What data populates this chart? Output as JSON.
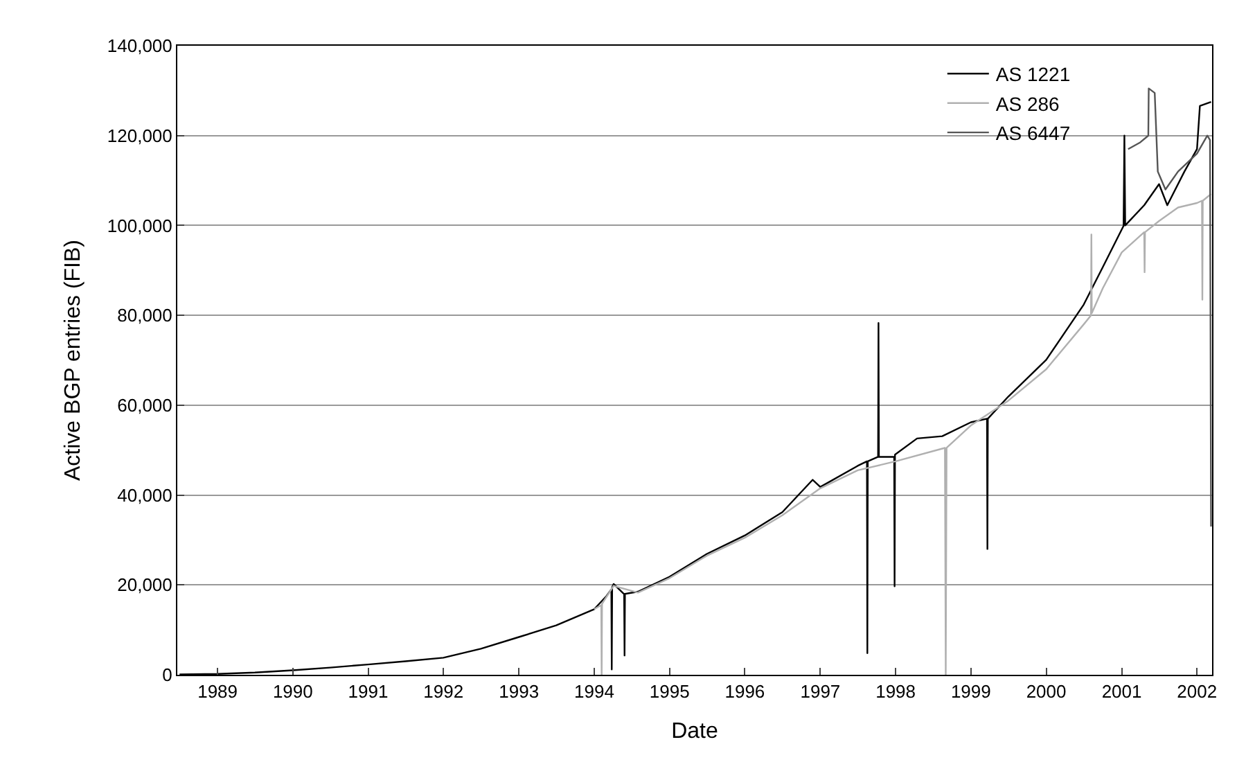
{
  "chart_data": {
    "type": "line",
    "xlabel": "Date",
    "ylabel": "Active BGP entries (FIB)",
    "xlim": [
      "1988-06-20",
      "2002-03-15"
    ],
    "ylim": [
      0,
      140000
    ],
    "xticks": [
      {
        "value": "1989-01-01",
        "label": "1989"
      },
      {
        "value": "1990-01-01",
        "label": "1990"
      },
      {
        "value": "1991-01-01",
        "label": "1991"
      },
      {
        "value": "1992-01-01",
        "label": "1992"
      },
      {
        "value": "1993-01-01",
        "label": "1993"
      },
      {
        "value": "1994-01-01",
        "label": "1994"
      },
      {
        "value": "1995-01-01",
        "label": "1995"
      },
      {
        "value": "1996-01-01",
        "label": "1996"
      },
      {
        "value": "1997-01-01",
        "label": "1997"
      },
      {
        "value": "1998-01-01",
        "label": "1998"
      },
      {
        "value": "1999-01-01",
        "label": "1999"
      },
      {
        "value": "2000-01-01",
        "label": "2000"
      },
      {
        "value": "2001-01-01",
        "label": "2001"
      },
      {
        "value": "2002-01-01",
        "label": "2002"
      }
    ],
    "yticks": [
      0,
      {
        "value": 20000,
        "label": "20,000"
      },
      {
        "value": 40000,
        "label": "40,000"
      },
      {
        "value": 60000,
        "label": "60,000"
      },
      {
        "value": 80000,
        "label": "80,000"
      },
      {
        "value": 100000,
        "label": "100,000"
      },
      {
        "value": 120000,
        "label": "120,000"
      },
      {
        "value": 140000,
        "label": "140,000"
      }
    ],
    "grid": "y",
    "legend": "top right",
    "marker": "none",
    "line_style": "solid",
    "series": [
      {
        "name": "AS 1221",
        "color": "#000000",
        "x": [
          "1988-07-01",
          "1989-01-01",
          "1989-07-01",
          "1990-01-01",
          "1990-07-01",
          "1991-01-01",
          "1991-07-01",
          "1992-01-01",
          "1992-07-01",
          "1993-01-01",
          "1993-07-01",
          "1994-01-01",
          "1994-03-01",
          "1994-03-25",
          "1994-03-27",
          "1994-03-29",
          "1994-04-05",
          "1994-05-20",
          "1994-05-26",
          "1994-05-28",
          "1994-05-30",
          "1994-08-01",
          "1995-01-01",
          "1995-07-01",
          "1996-01-01",
          "1996-07-01",
          "1996-11-25",
          "1997-01-01",
          "1997-07-01",
          "1997-08-15",
          "1997-08-17",
          "1997-08-19",
          "1997-10-08",
          "1997-10-10",
          "1997-10-12",
          "1997-12-25",
          "1997-12-27",
          "1997-12-29",
          "1998-04-15",
          "1998-08-15",
          "1999-01-01",
          "1999-03-20",
          "1999-03-22",
          "1999-03-24",
          "1999-07-01",
          "2000-01-01",
          "2000-07-01",
          "2000-10-01",
          "2001-01-10",
          "2001-01-14",
          "2001-01-18",
          "2001-04-20",
          "2001-07-01",
          "2001-08-10",
          "2001-11-01",
          "2002-01-01",
          "2002-01-15",
          "2002-03-10"
        ],
        "values": [
          100,
          200,
          500,
          1000,
          1600,
          2300,
          3000,
          3800,
          5800,
          8400,
          11000,
          14600,
          17500,
          19000,
          1200,
          19500,
          20200,
          18200,
          18000,
          4300,
          18000,
          18500,
          21800,
          26900,
          31000,
          36200,
          43400,
          41800,
          46500,
          47500,
          4800,
          47500,
          48500,
          78300,
          48500,
          48500,
          19700,
          49000,
          52600,
          53100,
          56200,
          57000,
          28000,
          57000,
          61900,
          70100,
          82400,
          90700,
          99900,
          120000,
          100000,
          104500,
          109200,
          104500,
          112000,
          117000,
          126600,
          127500
        ]
      },
      {
        "name": "AS 286",
        "color": "#b0b0b0",
        "x": [
          "1994-01-01",
          "1994-02-04",
          "1994-02-06",
          "1994-02-08",
          "1994-04-05",
          "1994-08-01",
          "1995-01-01",
          "1995-07-01",
          "1996-01-01",
          "1996-07-01",
          "1997-01-01",
          "1997-07-01",
          "1998-01-01",
          "1998-08-28",
          "1998-09-01",
          "1998-09-05",
          "1999-01-01",
          "1999-07-01",
          "2000-01-01",
          "2000-07-01",
          "2000-08-05",
          "2000-08-07",
          "2000-08-09",
          "2000-10-01",
          "2001-01-01",
          "2001-04-20",
          "2001-04-22",
          "2001-04-24",
          "2001-07-01",
          "2001-10-01",
          "2002-01-01",
          "2002-01-25",
          "2002-01-27",
          "2002-01-29",
          "2002-03-10"
        ],
        "values": [
          14600,
          15500,
          0,
          15800,
          19800,
          18300,
          21500,
          26500,
          30500,
          35500,
          41500,
          45500,
          47500,
          50500,
          0,
          50500,
          55500,
          61000,
          68000,
          78000,
          80000,
          98000,
          80500,
          86000,
          94000,
          98500,
          89600,
          98500,
          101000,
          104000,
          105000,
          105500,
          83500,
          105500,
          107000
        ]
      },
      {
        "name": "AS 6447",
        "color": "#555555",
        "x": [
          "2001-02-01",
          "2001-04-01",
          "2001-05-10",
          "2001-05-12",
          "2001-06-10",
          "2001-06-25",
          "2001-08-01",
          "2001-10-01",
          "2002-01-01",
          "2002-02-20",
          "2002-03-05",
          "2002-03-10"
        ],
        "values": [
          117000,
          118500,
          120000,
          130500,
          129500,
          112000,
          108000,
          112000,
          116000,
          120000,
          119000,
          33000
        ]
      }
    ]
  }
}
